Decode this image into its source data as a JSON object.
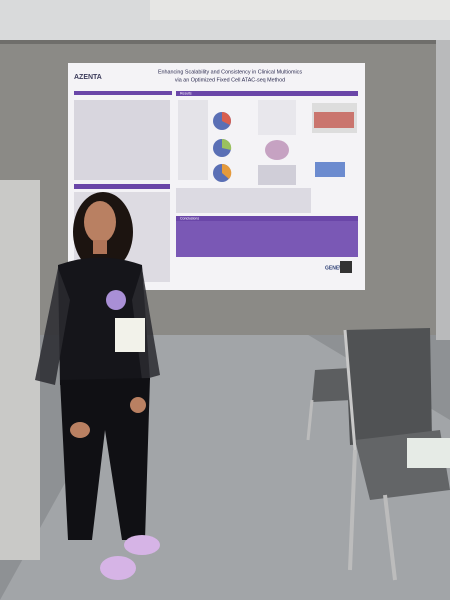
{
  "poster": {
    "logo": "AZENTA",
    "title_line1": "Enhancing Scalability and Consistency in Clinical Multiomics",
    "title_line2": "via an Optimized Fixed Cell ATAC-seq Method",
    "sections": [
      "Results",
      "Conclusions"
    ],
    "sponsor": "GENEWIZ"
  }
}
